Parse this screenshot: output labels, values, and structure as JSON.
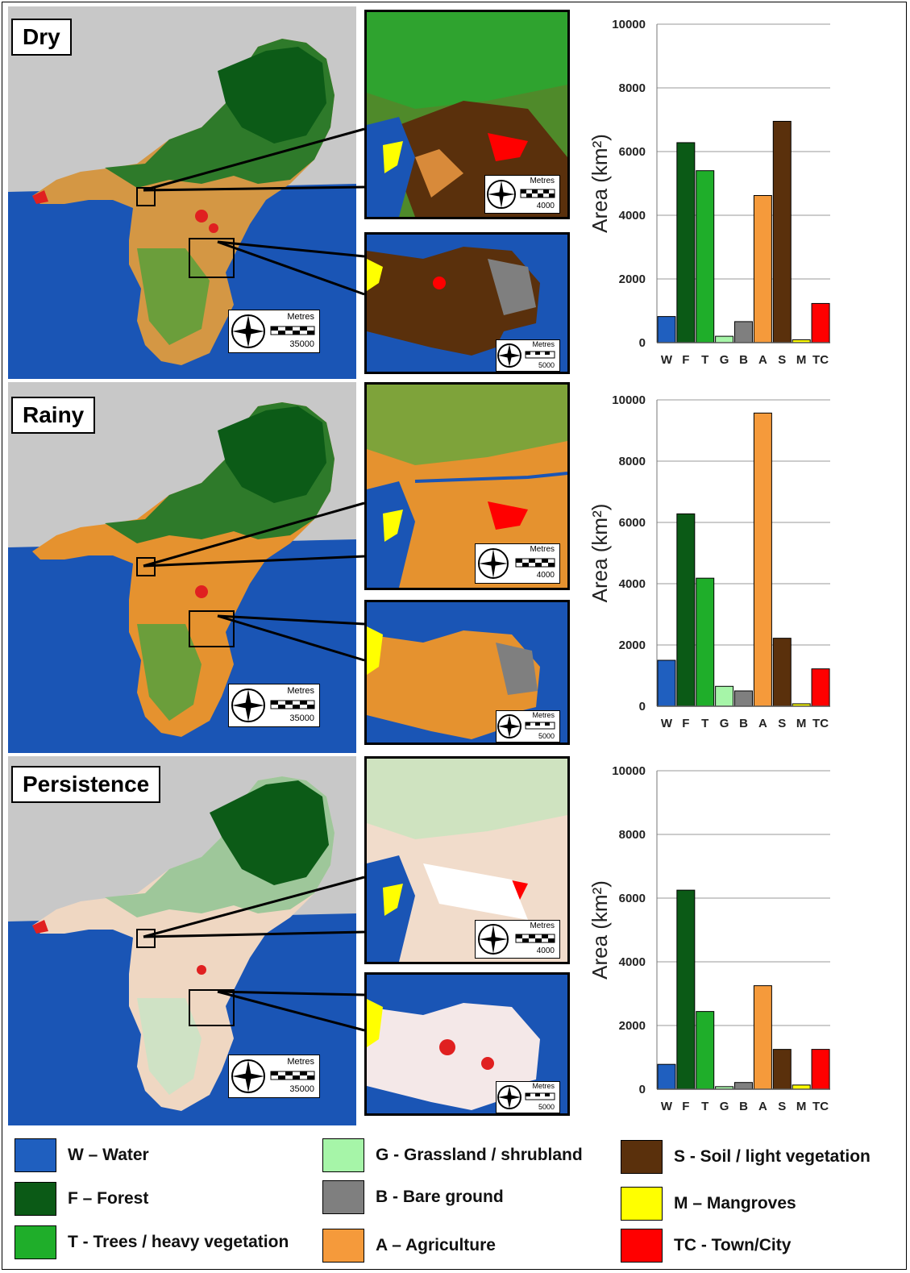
{
  "panels": [
    {
      "label": "Dry",
      "scale_title": "Metres",
      "scale_main": "35000",
      "scale_inset1": "4000",
      "scale_inset2": "5000"
    },
    {
      "label": "Rainy",
      "scale_title": "Metres",
      "scale_main": "35000",
      "scale_inset1": "4000",
      "scale_inset2": "5000"
    },
    {
      "label": "Persistence",
      "scale_title": "Metres",
      "scale_main": "35000",
      "scale_inset1": "4000",
      "scale_inset2": "5000"
    }
  ],
  "legend": [
    {
      "code": "W",
      "text": "W – Water",
      "color": "#1f5fbf"
    },
    {
      "code": "F",
      "text": "F – Forest",
      "color": "#0b5a16"
    },
    {
      "code": "T",
      "text": "T - Trees / heavy vegetation",
      "color": "#1fae2a"
    },
    {
      "code": "G",
      "text": "G - Grassland / shrubland",
      "color": "#a6f5a8"
    },
    {
      "code": "B",
      "text": "B - Bare ground",
      "color": "#7f7f7f"
    },
    {
      "code": "A",
      "text": "A – Agriculture",
      "color": "#f59a3b"
    },
    {
      "code": "S",
      "text": "S - Soil / light vegetation",
      "color": "#5a300c"
    },
    {
      "code": "M",
      "text": "M – Mangroves",
      "color": "#ffff00"
    },
    {
      "code": "TC",
      "text": "TC - Town/City",
      "color": "#ff0000"
    }
  ],
  "chart_data": [
    {
      "type": "bar",
      "panel": "Dry",
      "categories": [
        "W",
        "F",
        "T",
        "G",
        "B",
        "A",
        "S",
        "M",
        "TC"
      ],
      "values": [
        820,
        6280,
        5400,
        200,
        660,
        4620,
        6950,
        90,
        1230
      ],
      "ylabel": "Area (km²)",
      "yticks": [
        "0",
        "2000",
        "4000",
        "6000",
        "8000",
        "10000"
      ],
      "ylim": [
        0,
        10000
      ],
      "grid": true
    },
    {
      "type": "bar",
      "panel": "Rainy",
      "categories": [
        "W",
        "F",
        "T",
        "G",
        "B",
        "A",
        "S",
        "M",
        "TC"
      ],
      "values": [
        1500,
        6280,
        4180,
        650,
        500,
        9570,
        2220,
        80,
        1220
      ],
      "ylabel": "Area (km²)",
      "yticks": [
        "0",
        "2000",
        "4000",
        "6000",
        "8000",
        "10000"
      ],
      "ylim": [
        0,
        10000
      ],
      "grid": true
    },
    {
      "type": "bar",
      "panel": "Persistence",
      "categories": [
        "W",
        "F",
        "T",
        "G",
        "B",
        "A",
        "S",
        "M",
        "TC"
      ],
      "values": [
        780,
        6250,
        2440,
        80,
        210,
        3250,
        1250,
        130,
        1250
      ],
      "ylabel": "Area (km²)",
      "yticks": [
        "0",
        "2000",
        "4000",
        "6000",
        "8000",
        "10000"
      ],
      "ylim": [
        0,
        10000
      ],
      "grid": true
    }
  ]
}
